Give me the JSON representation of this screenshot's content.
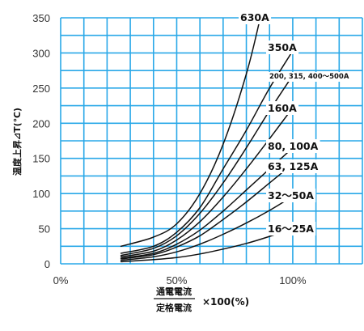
{
  "chart_data": {
    "type": "line",
    "xlabel_numerator": "通電電流",
    "xlabel_denominator": "定格電流",
    "xlabel_multiplier": "×100(%)",
    "ylabel": "温度上昇⊿T(℃)",
    "xlim": [
      0,
      130
    ],
    "ylim": [
      0,
      350
    ],
    "grid": true,
    "grid_color": "#29a8e8",
    "line_color": "#111111",
    "y_ticks": [
      {
        "value": 0,
        "label": "0"
      },
      {
        "value": 50,
        "label": "50"
      },
      {
        "value": 100,
        "label": "100"
      },
      {
        "value": 150,
        "label": "150"
      },
      {
        "value": 200,
        "label": "200"
      },
      {
        "value": 250,
        "label": "250"
      },
      {
        "value": 300,
        "label": "300"
      },
      {
        "value": 350,
        "label": "350"
      }
    ],
    "x_ticks": [
      {
        "value": 0,
        "label": "0%"
      },
      {
        "value": 50,
        "label": "50%"
      },
      {
        "value": 100,
        "label": "100%"
      }
    ],
    "series": [
      {
        "name": "630A",
        "points": [
          [
            26,
            25
          ],
          [
            40,
            38
          ],
          [
            50,
            57
          ],
          [
            60,
            100
          ],
          [
            70,
            170
          ],
          [
            80,
            270
          ],
          [
            86,
            350
          ]
        ]
      },
      {
        "name": "350A",
        "points": [
          [
            26,
            15
          ],
          [
            40,
            25
          ],
          [
            50,
            45
          ],
          [
            60,
            80
          ],
          [
            70,
            135
          ],
          [
            80,
            190
          ],
          [
            90,
            250
          ],
          [
            100,
            303
          ]
        ]
      },
      {
        "name": "200, 315, 400～500A",
        "points": [
          [
            26,
            12
          ],
          [
            40,
            22
          ],
          [
            50,
            40
          ],
          [
            60,
            72
          ],
          [
            70,
            115
          ],
          [
            80,
            165
          ],
          [
            90,
            218
          ],
          [
            100,
            268
          ]
        ]
      },
      {
        "name": "160A",
        "points": [
          [
            26,
            10
          ],
          [
            40,
            18
          ],
          [
            50,
            34
          ],
          [
            60,
            60
          ],
          [
            70,
            95
          ],
          [
            80,
            135
          ],
          [
            90,
            178
          ],
          [
            100,
            222
          ]
        ]
      },
      {
        "name": "80, 100A",
        "points": [
          [
            26,
            8
          ],
          [
            40,
            15
          ],
          [
            50,
            28
          ],
          [
            60,
            48
          ],
          [
            70,
            75
          ],
          [
            80,
            105
          ],
          [
            90,
            135
          ],
          [
            100,
            165
          ]
        ]
      },
      {
        "name": "63, 125A",
        "points": [
          [
            26,
            7
          ],
          [
            40,
            13
          ],
          [
            50,
            24
          ],
          [
            60,
            40
          ],
          [
            70,
            63
          ],
          [
            80,
            88
          ],
          [
            90,
            115
          ],
          [
            100,
            142
          ]
        ]
      },
      {
        "name": "32～50A",
        "points": [
          [
            26,
            5
          ],
          [
            40,
            10
          ],
          [
            50,
            17
          ],
          [
            60,
            28
          ],
          [
            70,
            42
          ],
          [
            80,
            58
          ],
          [
            90,
            76
          ],
          [
            100,
            96
          ]
        ]
      },
      {
        "name": "16～25A",
        "points": [
          [
            26,
            3
          ],
          [
            40,
            6
          ],
          [
            50,
            9
          ],
          [
            60,
            14
          ],
          [
            70,
            21
          ],
          [
            80,
            29
          ],
          [
            90,
            39
          ],
          [
            100,
            50
          ]
        ]
      }
    ]
  }
}
